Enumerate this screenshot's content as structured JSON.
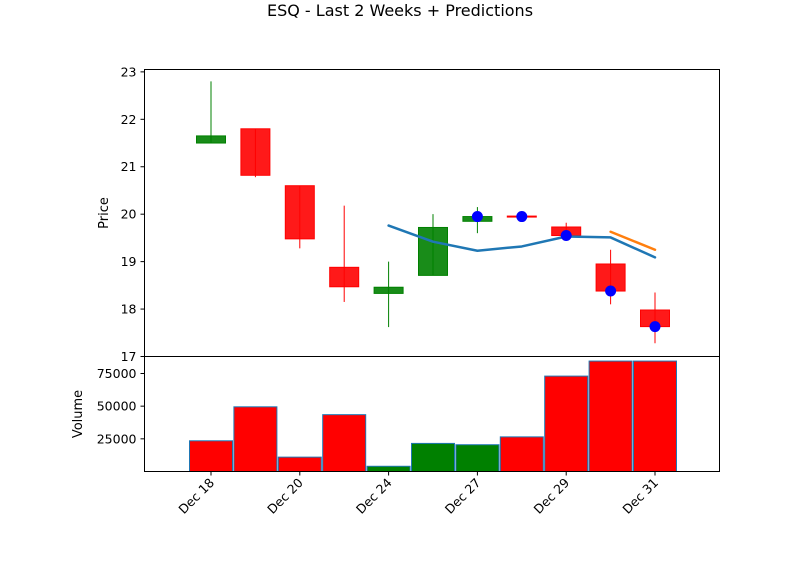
{
  "chart_data": {
    "type": "candlestick",
    "title": "ESQ - Last 2 Weeks + Predictions",
    "price_panel": {
      "ylabel": "Price",
      "ylim": [
        17,
        23.05
      ],
      "yticks": [
        17,
        18,
        19,
        20,
        21,
        22,
        23
      ],
      "candles": [
        {
          "date": "Dec 18",
          "open": 21.5,
          "high": 22.8,
          "low": 21.5,
          "close": 21.65
        },
        {
          "date": "Dec 19",
          "open": 21.8,
          "high": 21.8,
          "low": 20.78,
          "close": 20.82
        },
        {
          "date": "Dec 20",
          "open": 20.6,
          "high": 20.6,
          "low": 19.28,
          "close": 19.48
        },
        {
          "date": "Dec 23",
          "open": 18.88,
          "high": 20.18,
          "low": 18.15,
          "close": 18.47
        },
        {
          "date": "Dec 24",
          "open": 18.33,
          "high": 19.0,
          "low": 17.62,
          "close": 18.46
        },
        {
          "date": "Dec 26",
          "open": 18.71,
          "high": 20.0,
          "low": 18.71,
          "close": 19.72
        },
        {
          "date": "Dec 27",
          "open": 19.85,
          "high": 20.15,
          "low": 19.6,
          "close": 19.95
        },
        {
          "date": "Dec 28",
          "open": 19.96,
          "high": 19.96,
          "low": 19.94,
          "close": 19.95
        },
        {
          "date": "Dec 29",
          "open": 19.73,
          "high": 19.82,
          "low": 19.5,
          "close": 19.55
        },
        {
          "date": "Dec 30",
          "open": 18.95,
          "high": 19.25,
          "low": 18.1,
          "close": 18.38
        },
        {
          "date": "Dec 31",
          "open": 17.98,
          "high": 18.35,
          "low": 17.28,
          "close": 17.63
        }
      ],
      "markers": [
        {
          "date": "Dec 27",
          "value": 19.95
        },
        {
          "date": "Dec 28",
          "value": 19.95
        },
        {
          "date": "Dec 29",
          "value": 19.55
        },
        {
          "date": "Dec 30",
          "value": 18.38
        },
        {
          "date": "Dec 31",
          "value": 17.63
        }
      ],
      "series": [
        {
          "color": "#1f77b4",
          "points": [
            {
              "date": "Dec 24",
              "value": 19.76
            },
            {
              "date": "Dec 26",
              "value": 19.42
            },
            {
              "date": "Dec 27",
              "value": 19.23
            },
            {
              "date": "Dec 28",
              "value": 19.32
            },
            {
              "date": "Dec 29",
              "value": 19.53
            },
            {
              "date": "Dec 30",
              "value": 19.51
            },
            {
              "date": "Dec 31",
              "value": 19.09
            }
          ]
        },
        {
          "color": "#ff7f0e",
          "points": [
            {
              "date": "Dec 30",
              "value": 19.63
            },
            {
              "date": "Dec 31",
              "value": 19.25
            }
          ]
        }
      ]
    },
    "volume_panel": {
      "ylabel": "Volume",
      "ylim": [
        0,
        88000
      ],
      "yticks": [
        25000,
        50000,
        75000
      ],
      "bars": [
        {
          "date": "Dec 18",
          "value": 23500,
          "direction": "down"
        },
        {
          "date": "Dec 19",
          "value": 49500,
          "direction": "down"
        },
        {
          "date": "Dec 20",
          "value": 11000,
          "direction": "down"
        },
        {
          "date": "Dec 23",
          "value": 43500,
          "direction": "down"
        },
        {
          "date": "Dec 24",
          "value": 4000,
          "direction": "up"
        },
        {
          "date": "Dec 26",
          "value": 21500,
          "direction": "up"
        },
        {
          "date": "Dec 27",
          "value": 20500,
          "direction": "up"
        },
        {
          "date": "Dec 28",
          "value": 26500,
          "direction": "down"
        },
        {
          "date": "Dec 29",
          "value": 73000,
          "direction": "down"
        },
        {
          "date": "Dec 30",
          "value": 84500,
          "direction": "down"
        },
        {
          "date": "Dec 31",
          "value": 84500,
          "direction": "down"
        }
      ]
    },
    "xticks": [
      "Dec 18",
      "Dec 20",
      "Dec 24",
      "Dec 27",
      "Dec 29",
      "Dec 31"
    ],
    "colors": {
      "up": "#008000",
      "down": "#ff0000",
      "marker": "#0000ff",
      "volume_edge": "#1f77b4"
    },
    "grid": false
  }
}
